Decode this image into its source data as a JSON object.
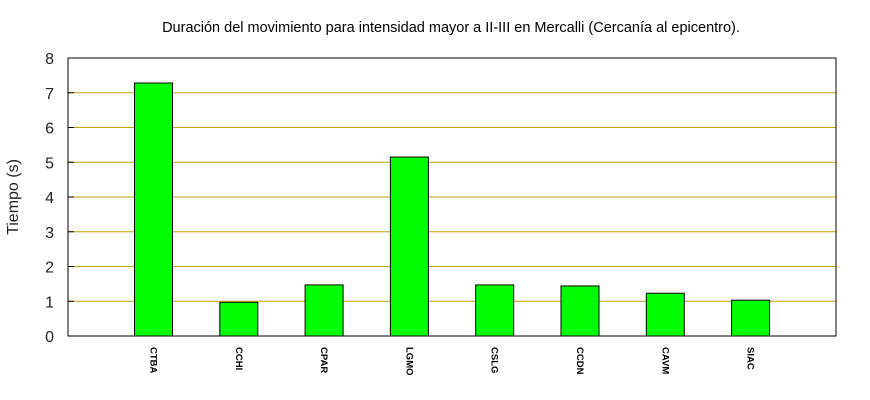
{
  "chart_data": {
    "type": "bar",
    "title": "Duración del movimiento para intensidad mayor a II-III en Mercalli (Cercanía al epicentro).",
    "xlabel": "",
    "ylabel": "Tiempo (s)",
    "ylim": [
      0,
      8
    ],
    "yticks": [
      0,
      1,
      2,
      3,
      4,
      5,
      6,
      7,
      8
    ],
    "grid": true,
    "legend": "none",
    "categories": [
      "CTBA",
      "CCHI",
      "CPAR",
      "LGMO",
      "CSLG",
      "CCDN",
      "CAVM",
      "SIAC"
    ],
    "values": [
      7.28,
      0.97,
      1.47,
      5.15,
      1.47,
      1.44,
      1.23,
      1.03
    ],
    "colors": {
      "bar": "#00ff00",
      "grid": "#c8a000",
      "frame": "#000000"
    }
  }
}
